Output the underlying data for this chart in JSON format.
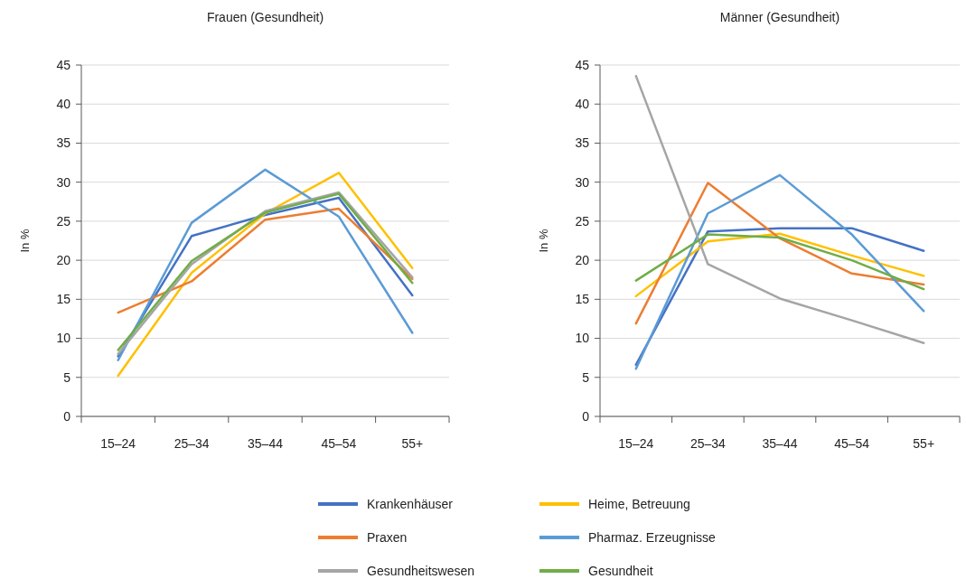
{
  "chart_data": [
    {
      "type": "line",
      "title": "Frauen (Gesundheit)",
      "ylabel": "In %",
      "categories": [
        "15–24",
        "25–34",
        "35–44",
        "45–54",
        "55+"
      ],
      "ylim": [
        0,
        45
      ],
      "yticks": [
        0,
        5,
        10,
        15,
        20,
        25,
        30,
        35,
        40,
        45
      ],
      "grid": "y",
      "legend": "bottom",
      "series": [
        {
          "name": "Krankenhäuser",
          "color": "#4472c4",
          "values": [
            7.7,
            23.1,
            25.8,
            28.0,
            15.5
          ]
        },
        {
          "name": "Heime, Betreuung",
          "color": "#ffc000",
          "values": [
            5.2,
            18.4,
            26.0,
            31.2,
            19.0
          ]
        },
        {
          "name": "Praxen",
          "color": "#ed7d31",
          "values": [
            13.3,
            17.3,
            25.2,
            26.6,
            17.6
          ]
        },
        {
          "name": "Pharmaz. Erzeugnisse",
          "color": "#5b9bd5",
          "values": [
            7.2,
            24.8,
            31.6,
            25.6,
            10.7
          ]
        },
        {
          "name": "Gesundheitswesen",
          "color": "#a5a5a5",
          "values": [
            8.0,
            19.5,
            26.3,
            28.7,
            17.8
          ]
        },
        {
          "name": "Gesundheit",
          "color": "#70ad47",
          "values": [
            8.5,
            19.9,
            26.1,
            28.5,
            17.1
          ]
        }
      ]
    },
    {
      "type": "line",
      "title": "Männer (Gesundheit)",
      "ylabel": "In %",
      "categories": [
        "15–24",
        "25–34",
        "35–44",
        "45–54",
        "55+"
      ],
      "ylim": [
        0,
        45
      ],
      "yticks": [
        0,
        5,
        10,
        15,
        20,
        25,
        30,
        35,
        40,
        45
      ],
      "grid": "y",
      "series": [
        {
          "color": "#4472c4",
          "values": [
            6.6,
            23.7,
            24.1,
            24.1,
            21.2
          ]
        },
        {
          "color": "#ffc000",
          "values": [
            15.4,
            22.4,
            23.4,
            20.6,
            18.0
          ]
        },
        {
          "color": "#ed7d31",
          "values": [
            11.9,
            29.9,
            22.8,
            18.3,
            16.9
          ]
        },
        {
          "color": "#5b9bd5",
          "values": [
            6.1,
            26.0,
            30.9,
            23.3,
            13.5
          ]
        },
        {
          "color": "#a5a5a5",
          "values": [
            43.6,
            19.5,
            15.1,
            12.3,
            9.4
          ]
        },
        {
          "color": "#70ad47",
          "values": [
            17.4,
            23.3,
            22.9,
            20.0,
            16.3
          ]
        }
      ]
    }
  ]
}
